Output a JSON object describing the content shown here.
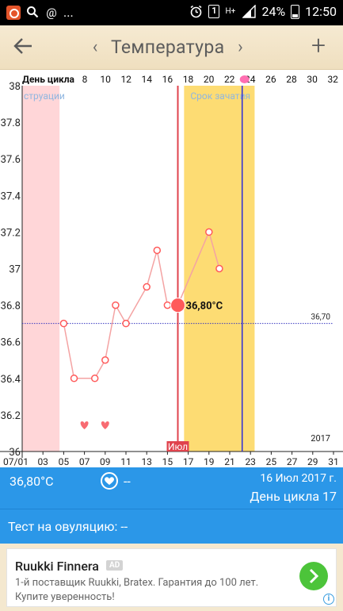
{
  "status_bar": {
    "icons": [
      "app-icon",
      "search-icon",
      "at-icon",
      "more-dots-icon",
      "alarm-icon",
      "sim-1-icon",
      "data-icon",
      "signal-icon",
      "battery-icon"
    ],
    "at": "@",
    "more": "...",
    "sim": "1",
    "data": "H+",
    "battery": "24%",
    "time": "12:50"
  },
  "header": {
    "title": "Температура",
    "prev": "‹",
    "next": "›",
    "add": "+"
  },
  "chart_data": {
    "type": "line",
    "top_axis_label": "День цикла",
    "cycle_day_ticks": [
      "8",
      "10",
      "12",
      "14",
      "16",
      "18",
      "20",
      "22",
      "24",
      "26",
      "28",
      "30",
      "32"
    ],
    "date_ticks": [
      "07/01",
      "03",
      "05",
      "07",
      "09",
      "11",
      "13",
      "15",
      "17",
      "19",
      "21",
      "23",
      "25",
      "27",
      "29",
      "31"
    ],
    "y_ticks": [
      "38",
      "37.8",
      "37.6",
      "37.4",
      "37.2",
      "37",
      "36.8",
      "36.6",
      "36.4",
      "36.2",
      "36"
    ],
    "ylim": [
      36,
      38
    ],
    "x_range_days": [
      1,
      31
    ],
    "series": [
      {
        "x_day": [
          5,
          6,
          8,
          9,
          10,
          11,
          13,
          14,
          15,
          16,
          19,
          20
        ],
        "values": [
          36.7,
          36.4,
          36.4,
          36.5,
          36.8,
          36.7,
          36.9,
          37.1,
          36.8,
          36.8,
          37.2,
          37.0
        ]
      }
    ],
    "menstruation_label": "струации",
    "menstruation_days": [
      1,
      4.6
    ],
    "fertile_label": "Срок зачатия",
    "fertile_days": [
      16.6,
      23.4
    ],
    "coverline_value": 36.7,
    "coverline_label": "36,70",
    "selected_day": 16,
    "selected_value": 36.8,
    "selected_label": "36,80°C",
    "ovulation_day": 22.2,
    "heart_days": [
      7,
      9
    ],
    "month_label": "Июл",
    "year_label": "2017",
    "colors": {
      "line": "#f4a3a3",
      "marker": "#ff5a5a",
      "menstruation": "#ffd6d8",
      "fertile": "#fddc73",
      "selected_line": "#e0434d",
      "ovulation_line": "#2c2cd8",
      "coverline": "#3a3ac0",
      "heart": "#f86b72",
      "ovulation_dot": "#ff6fb2"
    }
  },
  "summary": {
    "temperature": "36,80°C",
    "heart_icon": "heart-circle-icon",
    "intercourse_value": "--",
    "date": "16 Июл 2017 г.",
    "cycle_day": "День цикла 17"
  },
  "ovulation_test": {
    "label": "Тест на овуляцию:",
    "value": "--"
  },
  "ad": {
    "title": "Ruukki Finnera",
    "badge": "AD",
    "text": "1-й поставщик Ruukki, Bratex. Гарантия до 100 лет. Купите уверенность!",
    "info": "i"
  }
}
